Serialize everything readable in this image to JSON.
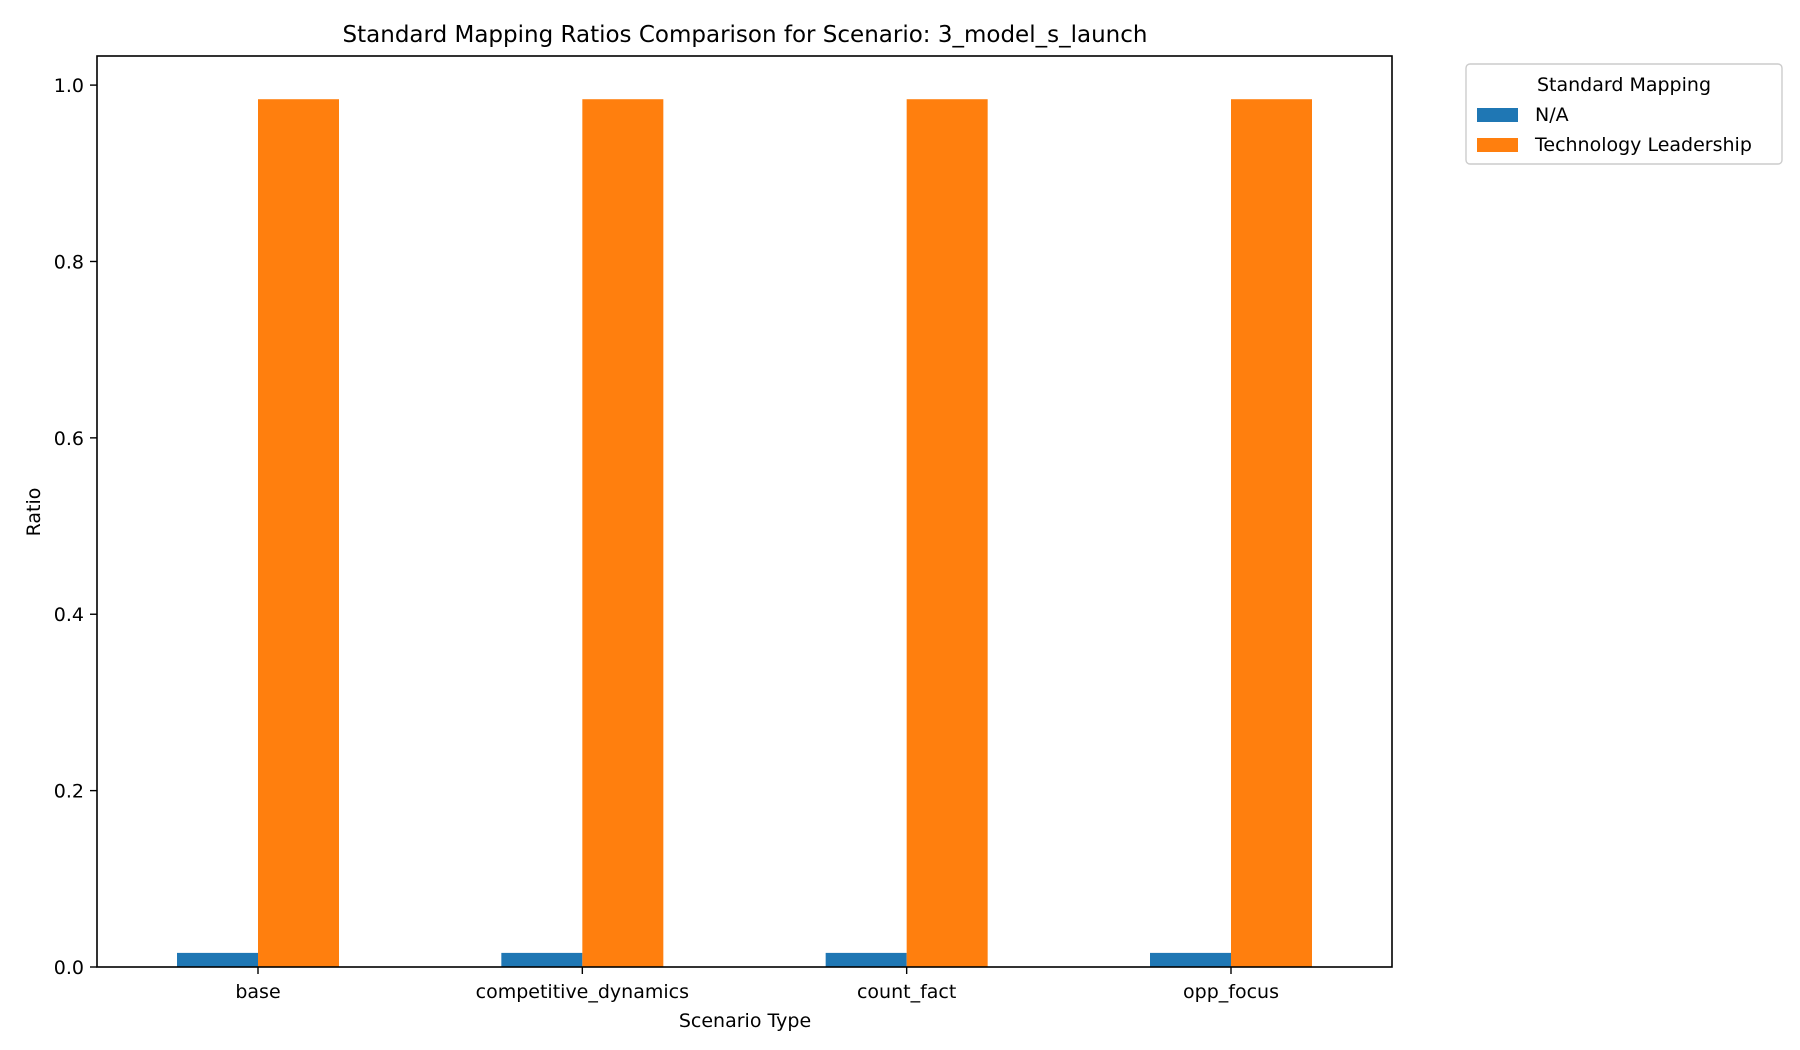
{
  "chart_data": {
    "type": "bar",
    "title": "Standard Mapping Ratios Comparison for Scenario: 3_model_s_launch",
    "xlabel": "Scenario Type",
    "ylabel": "Ratio",
    "categories": [
      "base",
      "competitive_dynamics",
      "count_fact",
      "opp_focus"
    ],
    "series": [
      {
        "name": "N/A",
        "color": "#1f77b4",
        "values": [
          0.016,
          0.016,
          0.016,
          0.016
        ]
      },
      {
        "name": "Technology Leadership",
        "color": "#ff7f0e",
        "values": [
          0.984,
          0.984,
          0.984,
          0.984
        ]
      }
    ],
    "ylim": [
      0,
      1.033
    ],
    "yticks": [
      0.0,
      0.2,
      0.4,
      0.6,
      0.8,
      1.0
    ],
    "ytick_labels": [
      "0.0",
      "0.2",
      "0.4",
      "0.6",
      "0.8",
      "1.0"
    ],
    "grid": false,
    "legend": {
      "title": "Standard Mapping",
      "position": "outside upper right"
    }
  }
}
